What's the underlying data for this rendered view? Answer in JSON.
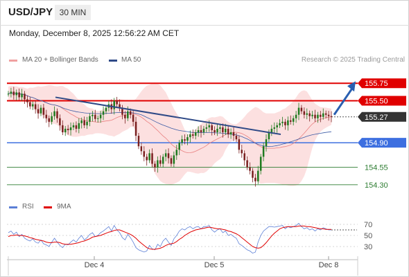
{
  "header": {
    "symbol": "USD/JPY",
    "timeframe": "30 MIN",
    "datetime": "Monday, December 8, 2025 12:56:22 AM CET"
  },
  "legend": {
    "ma20": "MA 20 + Bollinger Bands",
    "ma50": "MA 50",
    "credit": "Research © 2025 Trading Central",
    "rsi": "RSI",
    "ma9": "9MA"
  },
  "colors": {
    "resistance": "#e00000",
    "support": "#3d6fe0",
    "target": "#2e7d32",
    "candle_up": "#1f7a1f",
    "candle_down": "#7a1f1f",
    "trend": "#2f4a87",
    "bb_fill": "#fbd5d5",
    "ma20": "#e98080",
    "ma50": "#3b5ba5",
    "current": "#333333",
    "rsi": "#5b7fd6",
    "ma9": "#e00000"
  },
  "chart_data": [
    {
      "type": "candlestick",
      "title": "USD/JPY 30 MIN",
      "x_ticks": [
        "Dec 4",
        "Dec 5",
        "Dec 8"
      ],
      "ylim": [
        154.15,
        155.95
      ],
      "levels": [
        {
          "label": "155.75",
          "value": 155.75,
          "kind": "resistance"
        },
        {
          "label": "155.50",
          "value": 155.5,
          "kind": "resistance"
        },
        {
          "label": "155.27",
          "value": 155.27,
          "kind": "current"
        },
        {
          "label": "154.90",
          "value": 154.9,
          "kind": "support"
        },
        {
          "label": "154.55",
          "value": 154.55,
          "kind": "target"
        },
        {
          "label": "154.30",
          "value": 154.3,
          "kind": "target"
        }
      ],
      "close_series": [
        155.6,
        155.63,
        155.58,
        155.62,
        155.55,
        155.6,
        155.52,
        155.48,
        155.42,
        155.45,
        155.38,
        155.32,
        155.4,
        155.3,
        155.25,
        155.2,
        155.28,
        155.35,
        155.25,
        155.15,
        155.05,
        155.1,
        155.08,
        155.12,
        155.15,
        155.1,
        155.18,
        155.22,
        155.15,
        155.2,
        155.28,
        155.3,
        155.24,
        155.25,
        155.3,
        155.35,
        155.4,
        155.45,
        155.38,
        155.5,
        155.45,
        155.4,
        155.3,
        155.25,
        155.35,
        155.3,
        155.2,
        155.0,
        154.85,
        154.78,
        154.7,
        154.65,
        154.75,
        154.6,
        154.55,
        154.65,
        154.6,
        154.7,
        154.75,
        154.68,
        154.6,
        154.72,
        154.8,
        154.9,
        154.95,
        154.93,
        154.98,
        155.02,
        155.0,
        155.05,
        155.08,
        155.05,
        155.1,
        155.12,
        155.15,
        155.08,
        155.05,
        155.1,
        155.12,
        155.05,
        155.1,
        155.02,
        155.05,
        155.0,
        154.95,
        154.8,
        154.75,
        154.65,
        154.55,
        154.5,
        154.4,
        154.35,
        154.5,
        154.7,
        154.85,
        154.95,
        155.05,
        155.1,
        155.12,
        155.15,
        155.18,
        155.2,
        155.15,
        155.22,
        155.2,
        155.25,
        155.3,
        155.4,
        155.35,
        155.3,
        155.32,
        155.28,
        155.3,
        155.25,
        155.3,
        155.27,
        155.32,
        155.3,
        155.28,
        155.27
      ],
      "trendline": {
        "from": [
          155.52,
          155.55
        ],
        "to": [
          154.98,
          155.02
        ]
      },
      "projection": {
        "from_value": 155.3,
        "to_value": 155.75
      },
      "ma_labels": [
        "MA 20 + Bollinger Bands",
        "MA 50"
      ]
    },
    {
      "type": "line",
      "title": "RSI",
      "yticks": [
        70,
        50,
        30
      ],
      "ylim": [
        15,
        85
      ],
      "series": [
        {
          "name": "RSI",
          "values": [
            55,
            58,
            52,
            56,
            48,
            52,
            45,
            42,
            40,
            44,
            38,
            36,
            42,
            35,
            33,
            30,
            38,
            45,
            38,
            32,
            28,
            34,
            33,
            38,
            42,
            38,
            45,
            50,
            42,
            46,
            52,
            55,
            48,
            50,
            55,
            58,
            62,
            66,
            58,
            68,
            60,
            55,
            46,
            42,
            52,
            46,
            38,
            28,
            24,
            22,
            20,
            22,
            32,
            26,
            24,
            34,
            30,
            40,
            45,
            38,
            32,
            44,
            50,
            58,
            62,
            60,
            64,
            66,
            62,
            65,
            66,
            62,
            66,
            66,
            68,
            60,
            56,
            60,
            62,
            55,
            58,
            50,
            52,
            48,
            45,
            35,
            32,
            28,
            24,
            22,
            18,
            20,
            38,
            50,
            58,
            62,
            66,
            66,
            65,
            66,
            67,
            68,
            62,
            66,
            64,
            66,
            68,
            72,
            66,
            62,
            64,
            60,
            62,
            58,
            62,
            60,
            64,
            62,
            60,
            60
          ]
        },
        {
          "name": "9MA",
          "values": [
            48,
            50,
            50,
            51,
            50,
            50,
            49,
            48,
            46,
            45,
            43,
            42,
            41,
            40,
            38,
            37,
            37,
            38,
            38,
            37,
            35,
            34,
            34,
            34,
            35,
            36,
            37,
            39,
            40,
            42,
            44,
            47,
            48,
            49,
            50,
            52,
            54,
            56,
            57,
            59,
            60,
            60,
            58,
            56,
            54,
            52,
            49,
            45,
            40,
            36,
            32,
            28,
            26,
            25,
            25,
            26,
            27,
            29,
            32,
            34,
            35,
            36,
            39,
            43,
            46,
            50,
            53,
            56,
            58,
            60,
            61,
            62,
            63,
            64,
            65,
            64,
            63,
            62,
            62,
            61,
            60,
            58,
            57,
            55,
            53,
            50,
            46,
            42,
            38,
            34,
            30,
            28,
            27,
            28,
            32,
            37,
            43,
            49,
            54,
            58,
            62,
            64,
            65,
            66,
            66,
            66,
            66,
            67,
            67,
            67,
            66,
            66,
            65,
            64,
            63,
            62,
            62,
            61,
            61,
            61
          ]
        }
      ]
    }
  ]
}
